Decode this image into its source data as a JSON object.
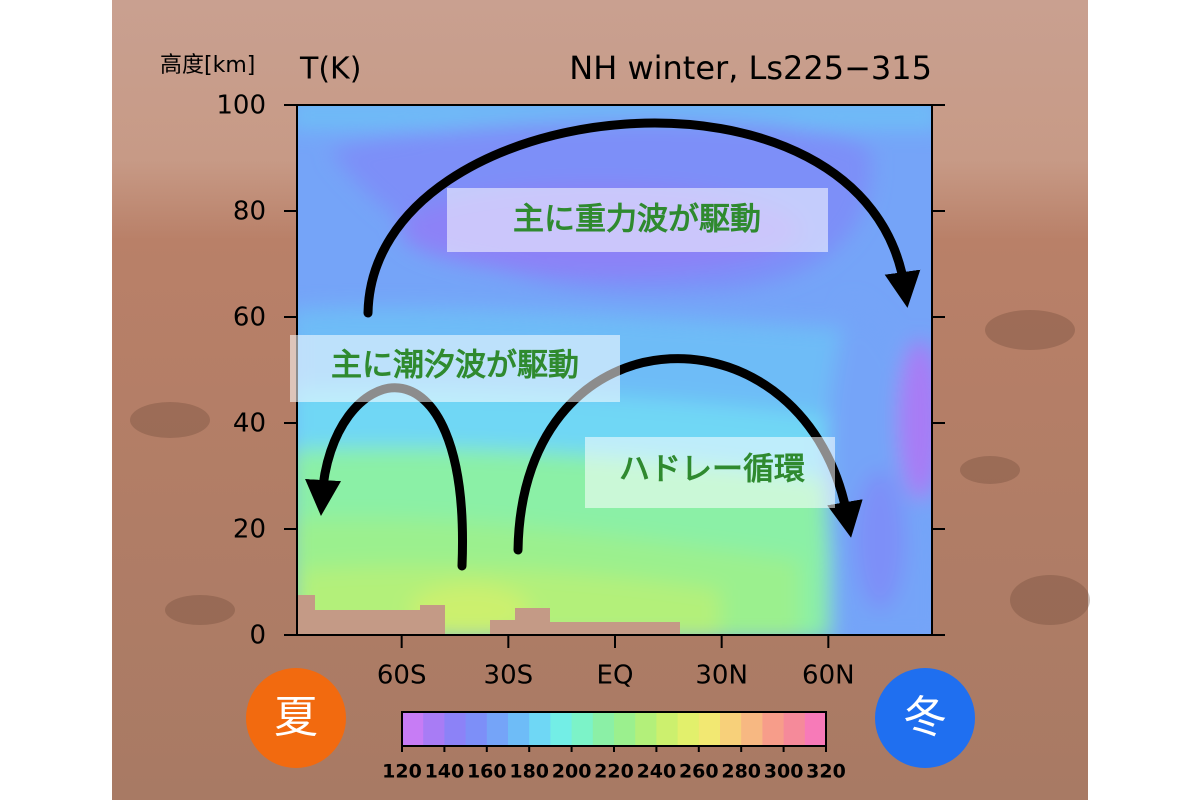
{
  "chart_data": {
    "type": "contour",
    "title": "NH winter, Ls225−315",
    "ylabel": "高度[km]",
    "quantity": "T(K)",
    "xlim": [
      -90,
      90
    ],
    "xticks": [
      {
        "value": -60,
        "label": "60S"
      },
      {
        "value": -30,
        "label": "30S"
      },
      {
        "value": 0,
        "label": "EQ"
      },
      {
        "value": 30,
        "label": "30N"
      },
      {
        "value": 60,
        "label": "60N"
      }
    ],
    "ylim": [
      0,
      100
    ],
    "yticks": [
      0,
      20,
      40,
      60,
      80,
      100
    ],
    "colorbar": {
      "clim": [
        120,
        320
      ],
      "ticks": [
        120,
        140,
        160,
        180,
        200,
        220,
        240,
        260,
        280,
        300,
        320
      ],
      "colors": [
        "#c77cf5",
        "#a87cf5",
        "#8c82f7",
        "#7d8ff8",
        "#75a4f8",
        "#6ebcf7",
        "#6fd7f5",
        "#73eee6",
        "#7cf3c8",
        "#8bf0a6",
        "#9bf08e",
        "#b3f07a",
        "#ccf06e",
        "#e2f06c",
        "#f2e872",
        "#f7d07a",
        "#f7b882",
        "#f79d8a",
        "#f58a9a",
        "#f77ab8"
      ]
    },
    "annotations": [
      "主に重力波が駆動",
      "主に潮汐波が駆動",
      "ハドレー循環"
    ],
    "season_labels": [
      "夏",
      "冬"
    ]
  }
}
